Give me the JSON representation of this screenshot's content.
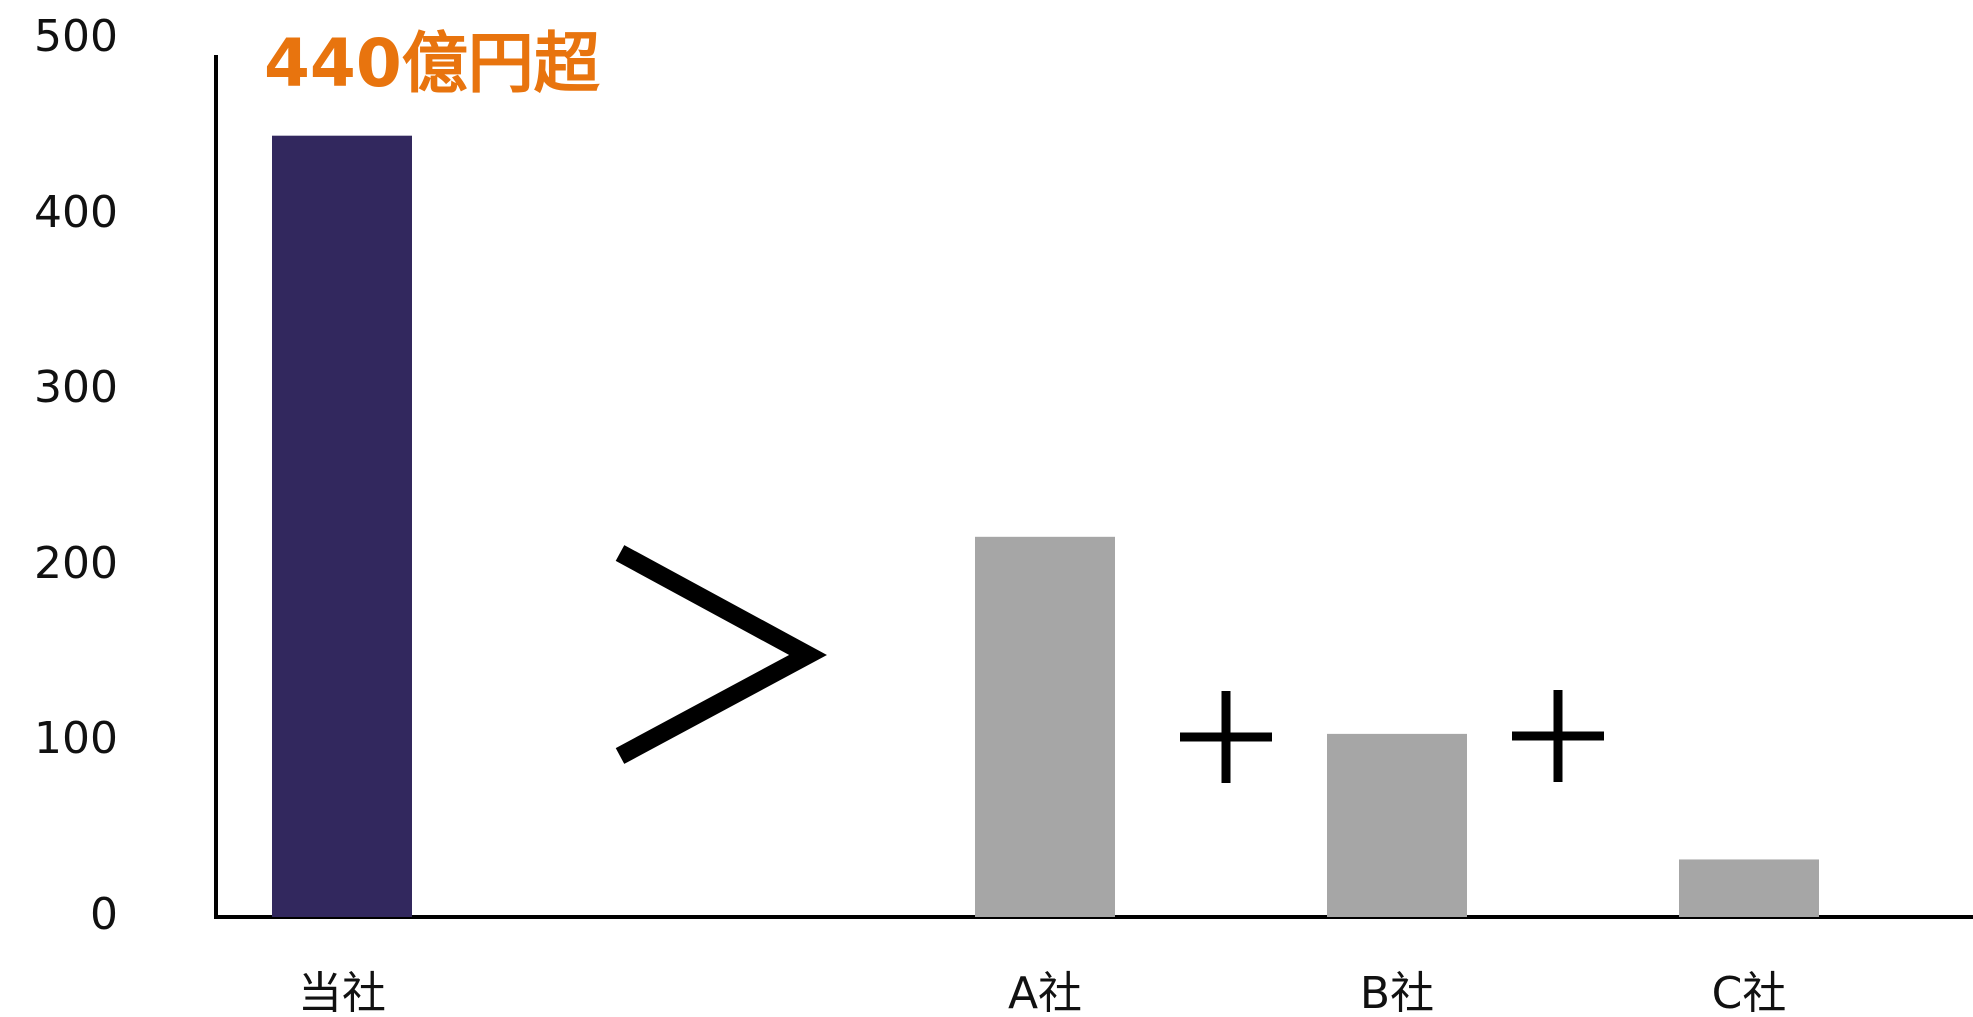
{
  "chart_data": {
    "type": "bar",
    "categories": [
      "当社",
      "A社",
      "B社",
      "C社"
    ],
    "values": [
      448,
      218,
      105,
      33
    ],
    "bar_colors": [
      "#32285e",
      "#a6a6a6",
      "#a6a6a6",
      "#a6a6a6"
    ],
    "ylim": [
      0,
      500
    ],
    "yticks": [
      "0",
      "100",
      "200",
      "300",
      "400",
      "500"
    ],
    "grid": false,
    "legend": "none",
    "annotation": {
      "text": "440億円超",
      "color": "#e8740e"
    },
    "symbols": {
      "greater_than": ">",
      "plus": "+"
    },
    "axis_color": "#000000"
  }
}
